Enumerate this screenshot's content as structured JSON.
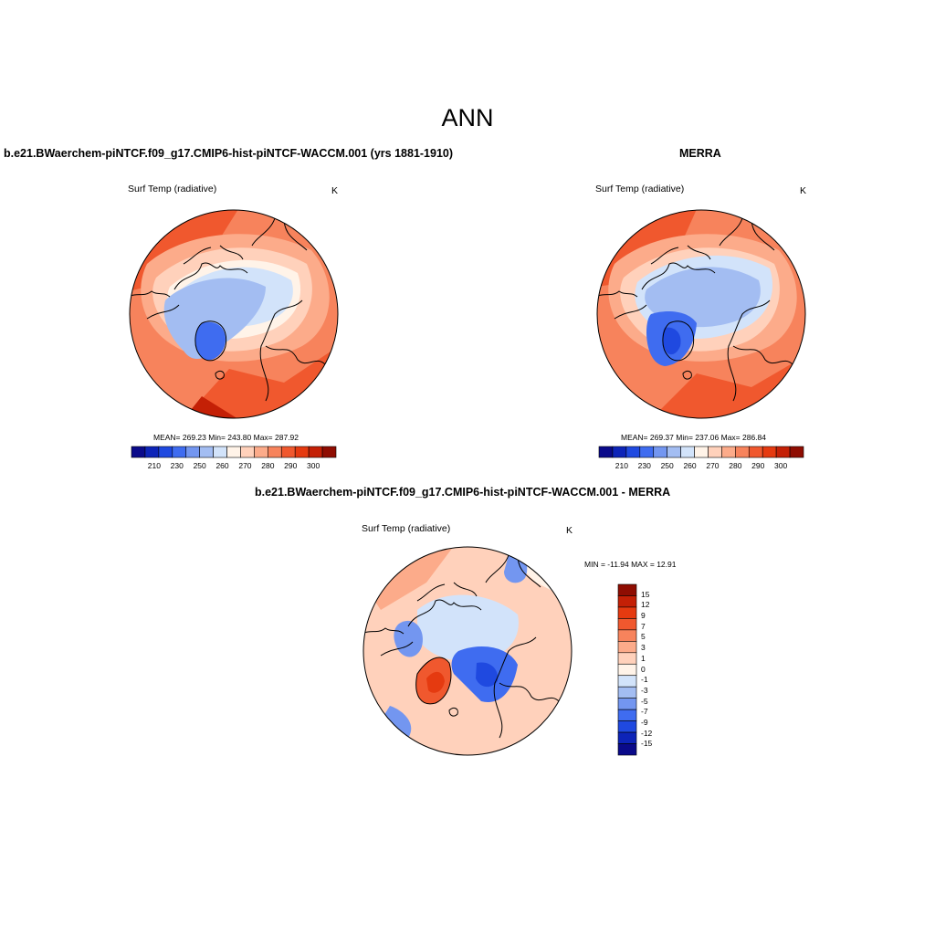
{
  "page": {
    "title": "ANN"
  },
  "panels": {
    "model": {
      "title": "b.e21.BWaerchem-piNTCF.f09_g17.CMIP6-hist-piNTCF-WACCM.001 (yrs 1881-1910)",
      "variable": "Surf Temp (radiative)",
      "units": "K",
      "stats": "MEAN= 269.23  Min= 243.80  Max= 287.92"
    },
    "obs": {
      "title": "MERRA",
      "variable": "Surf Temp (radiative)",
      "units": "K",
      "stats": "MEAN= 269.37  Min= 237.06  Max= 286.84"
    },
    "diff": {
      "title": "b.e21.BWaerchem-piNTCF.f09_g17.CMIP6-hist-piNTCF-WACCM.001 - MERRA",
      "variable": "Surf Temp (radiative)",
      "units": "K",
      "stats": "MIN = -11.94 MAX =  12.91"
    }
  },
  "colorbars": {
    "absolute": {
      "labels": [
        "210",
        "230",
        "250",
        "260",
        "270",
        "280",
        "290",
        "300"
      ],
      "colors": [
        "#0a0a8a",
        "#0d24b8",
        "#1f49e0",
        "#3f6cf0",
        "#7396f0",
        "#a3bdf2",
        "#d2e3fa",
        "#fff3e8",
        "#ffd1bb",
        "#fcab8a",
        "#f7835c",
        "#f0582e",
        "#e53a10",
        "#c42006",
        "#8f0d02"
      ]
    },
    "difference": {
      "labels": [
        "15",
        "12",
        "9",
        "7",
        "5",
        "3",
        "1",
        "0",
        "-1",
        "-3",
        "-5",
        "-7",
        "-9",
        "-12",
        "-15"
      ],
      "colors": [
        "#8f0d02",
        "#c42006",
        "#e53a10",
        "#f0582e",
        "#f7835c",
        "#fcab8a",
        "#ffd1bb",
        "#fff3e8",
        "#d2e3fa",
        "#a3bdf2",
        "#7396f0",
        "#3f6cf0",
        "#1f49e0",
        "#0d24b8",
        "#0a0a8a"
      ]
    }
  }
}
